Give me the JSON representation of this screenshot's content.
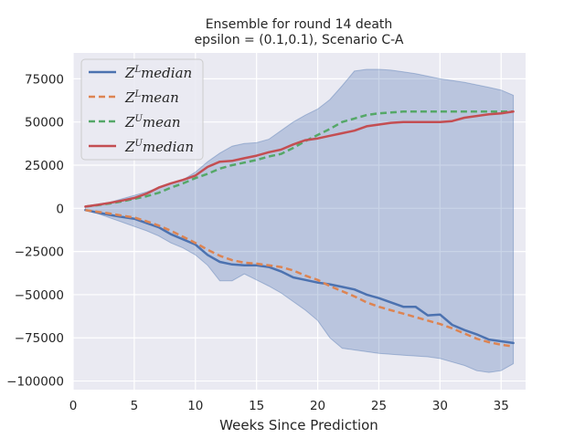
{
  "chart_data": {
    "type": "line",
    "title": "Ensemble for round 14 death",
    "subtitle": "epsilon = (0.1,0.1), Scenario C-A",
    "xlabel": "Weeks Since Prediction",
    "ylabel": "",
    "xlim": [
      0,
      37
    ],
    "ylim": [
      -105000,
      90000
    ],
    "xticks": [
      0,
      5,
      10,
      15,
      20,
      25,
      30,
      35
    ],
    "xtick_labels": [
      "0",
      "5",
      "10",
      "15",
      "20",
      "25",
      "30",
      "35"
    ],
    "yticks": [
      -100000,
      -75000,
      -50000,
      -25000,
      0,
      25000,
      50000,
      75000
    ],
    "ytick_labels": [
      "−100000",
      "−75000",
      "−50000",
      "−25000",
      "0",
      "25000",
      "50000",
      "75000"
    ],
    "grid": true,
    "background": "#eaeaf2",
    "legend_position": "top-left",
    "x": [
      1,
      2,
      3,
      4,
      5,
      6,
      7,
      8,
      9,
      10,
      11,
      12,
      13,
      14,
      15,
      16,
      17,
      18,
      19,
      20,
      21,
      22,
      23,
      24,
      25,
      26,
      27,
      28,
      29,
      30,
      31,
      32,
      33,
      34,
      35,
      36
    ],
    "band": {
      "color": "#4c72b0",
      "upper": [
        1200,
        2500,
        3500,
        5500,
        7500,
        9500,
        12000,
        14500,
        16500,
        21000,
        27000,
        32000,
        36000,
        37500,
        38000,
        40000,
        45000,
        50000,
        54000,
        57500,
        63000,
        71000,
        79500,
        80500,
        80500,
        80000,
        79000,
        78000,
        76500,
        75000,
        74000,
        73000,
        71500,
        70000,
        68500,
        65500
      ],
      "lower": [
        -1000,
        -3000,
        -5500,
        -8000,
        -10500,
        -13000,
        -16000,
        -20000,
        -23000,
        -27000,
        -33000,
        -42000,
        -42000,
        -38000,
        -41500,
        -45000,
        -49000,
        -54000,
        -59000,
        -65000,
        -75000,
        -81000,
        -82000,
        -83000,
        -84000,
        -84500,
        -85000,
        -85500,
        -86000,
        -87000,
        -89000,
        -91000,
        -94000,
        -95000,
        -94000,
        -90000
      ]
    },
    "series": [
      {
        "name": "Z^L median",
        "label_main": "Z",
        "label_sup": "L",
        "label_rest": "median",
        "color": "#4c72b0",
        "dash": "",
        "values": [
          -1000,
          -2500,
          -3800,
          -5000,
          -6000,
          -8500,
          -11000,
          -15000,
          -18000,
          -21000,
          -27000,
          -31000,
          -32500,
          -33000,
          -33000,
          -34000,
          -36500,
          -40000,
          -41500,
          -43000,
          -44000,
          -45500,
          -47000,
          -50000,
          -52000,
          -54500,
          -57000,
          -57000,
          -62000,
          -61500,
          -67500,
          -70500,
          -73000,
          -76000,
          -77000,
          -78000
        ]
      },
      {
        "name": "Z^L mean",
        "label_main": "Z",
        "label_sup": "L",
        "label_rest": "mean",
        "color": "#dd8452",
        "dash": "7,4",
        "values": [
          -1000,
          -2000,
          -3000,
          -4200,
          -5300,
          -7500,
          -10000,
          -13000,
          -16500,
          -20000,
          -24000,
          -27500,
          -30000,
          -31500,
          -32000,
          -33000,
          -34000,
          -36000,
          -39000,
          -41500,
          -45000,
          -48000,
          -51000,
          -54500,
          -57000,
          -59000,
          -61000,
          -63000,
          -65000,
          -67000,
          -69500,
          -72500,
          -75500,
          -77500,
          -79000,
          -80000
        ]
      },
      {
        "name": "Z^U mean",
        "label_main": "Z",
        "label_sup": "U",
        "label_rest": "mean",
        "color": "#55a868",
        "dash": "7,4",
        "values": [
          1000,
          1800,
          2800,
          4000,
          5500,
          7000,
          9000,
          12000,
          14500,
          17500,
          20000,
          23000,
          25000,
          26500,
          28000,
          30000,
          31500,
          35000,
          39000,
          42500,
          46000,
          50000,
          52000,
          54000,
          55000,
          55500,
          56000,
          56000,
          56000,
          56000,
          56000,
          56000,
          56000,
          56000,
          56000,
          56000
        ]
      },
      {
        "name": "Z^U median",
        "label_main": "Z",
        "label_sup": "U",
        "label_rest": "median",
        "color": "#c44e52",
        "dash": "",
        "values": [
          1000,
          2000,
          3200,
          4500,
          6000,
          8500,
          12000,
          14500,
          16500,
          19000,
          24000,
          27000,
          27500,
          29000,
          30500,
          32500,
          34000,
          37000,
          39500,
          40500,
          42000,
          43500,
          45000,
          47500,
          48500,
          49500,
          50000,
          50000,
          50000,
          50000,
          50500,
          52500,
          53500,
          54500,
          55000,
          56000
        ]
      }
    ]
  }
}
